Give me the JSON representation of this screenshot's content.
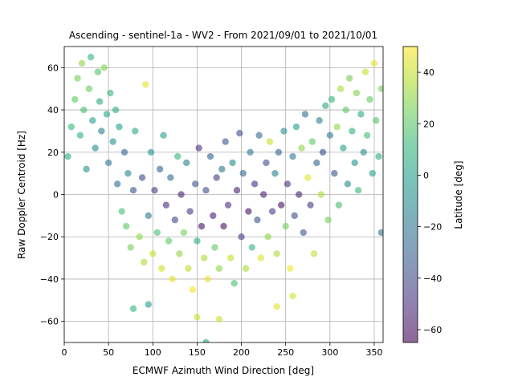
{
  "chart_data": {
    "type": "scatter",
    "title": "Ascending - sentinel-1a - WV2 - From 2021/09/01 to 2021/10/01",
    "xlabel": "ECMWF Azimuth Wind Direction [deg]",
    "ylabel": "Raw Doppler Centroid [Hz]",
    "xlim": [
      0,
      360
    ],
    "ylim": [
      -70,
      70
    ],
    "xticks": [
      "0",
      "50",
      "100",
      "150",
      "200",
      "250",
      "300",
      "350"
    ],
    "yticks": [
      "−60",
      "−40",
      "−20",
      "0",
      "20",
      "40",
      "60"
    ],
    "grid": true,
    "marker_alpha": 0.6,
    "colorbar": {
      "label": "Latitude [deg]",
      "range": [
        -65,
        50
      ],
      "ticks": [
        "−60",
        "−40",
        "−20",
        "0",
        "20",
        "40"
      ],
      "colormap": "viridis",
      "colors": [
        "#440154",
        "#482878",
        "#3e4a89",
        "#31688e",
        "#26828e",
        "#1f9e89",
        "#35b779",
        "#6ece58",
        "#b5de2b",
        "#fde725"
      ]
    },
    "points": [
      {
        "x": 4,
        "y": 18,
        "lat": 5
      },
      {
        "x": 8,
        "y": 32,
        "lat": 12
      },
      {
        "x": 12,
        "y": 45,
        "lat": 20
      },
      {
        "x": 15,
        "y": 55,
        "lat": 25
      },
      {
        "x": 18,
        "y": 28,
        "lat": 8
      },
      {
        "x": 20,
        "y": 62,
        "lat": 30
      },
      {
        "x": 22,
        "y": 40,
        "lat": 15
      },
      {
        "x": 25,
        "y": 12,
        "lat": -5
      },
      {
        "x": 28,
        "y": 50,
        "lat": 22
      },
      {
        "x": 30,
        "y": 65,
        "lat": 10
      },
      {
        "x": 32,
        "y": 35,
        "lat": 0
      },
      {
        "x": 35,
        "y": 22,
        "lat": -10
      },
      {
        "x": 38,
        "y": 58,
        "lat": 18
      },
      {
        "x": 40,
        "y": 44,
        "lat": 5
      },
      {
        "x": 42,
        "y": 30,
        "lat": -15
      },
      {
        "x": 45,
        "y": 60,
        "lat": 28
      },
      {
        "x": 48,
        "y": 38,
        "lat": 2
      },
      {
        "x": 50,
        "y": 15,
        "lat": -20
      },
      {
        "x": 52,
        "y": 48,
        "lat": 12
      },
      {
        "x": 55,
        "y": 25,
        "lat": -8
      },
      {
        "x": 58,
        "y": 40,
        "lat": 6
      },
      {
        "x": 60,
        "y": 5,
        "lat": -25
      },
      {
        "x": 62,
        "y": 32,
        "lat": 0
      },
      {
        "x": 65,
        "y": -8,
        "lat": 15
      },
      {
        "x": 68,
        "y": 20,
        "lat": -30
      },
      {
        "x": 70,
        "y": -15,
        "lat": 20
      },
      {
        "x": 72,
        "y": 10,
        "lat": -12
      },
      {
        "x": 75,
        "y": -25,
        "lat": 25
      },
      {
        "x": 78,
        "y": 2,
        "lat": -35
      },
      {
        "x": 78,
        "y": -54,
        "lat": 10
      },
      {
        "x": 80,
        "y": 30,
        "lat": 5
      },
      {
        "x": 85,
        "y": -20,
        "lat": 30
      },
      {
        "x": 88,
        "y": 8,
        "lat": -40
      },
      {
        "x": 90,
        "y": -32,
        "lat": 35
      },
      {
        "x": 92,
        "y": 52,
        "lat": 45
      },
      {
        "x": 95,
        "y": -10,
        "lat": -20
      },
      {
        "x": 95,
        "y": -52,
        "lat": 0
      },
      {
        "x": 98,
        "y": 20,
        "lat": -5
      },
      {
        "x": 100,
        "y": -28,
        "lat": 40
      },
      {
        "x": 102,
        "y": 2,
        "lat": -45
      },
      {
        "x": 105,
        "y": -18,
        "lat": 15
      },
      {
        "x": 108,
        "y": 12,
        "lat": -30
      },
      {
        "x": 110,
        "y": -35,
        "lat": 42
      },
      {
        "x": 112,
        "y": 28,
        "lat": 0
      },
      {
        "x": 115,
        "y": -5,
        "lat": -50
      },
      {
        "x": 118,
        "y": -22,
        "lat": 20
      },
      {
        "x": 120,
        "y": 8,
        "lat": -25
      },
      {
        "x": 122,
        "y": -40,
        "lat": 45
      },
      {
        "x": 125,
        "y": -12,
        "lat": -40
      },
      {
        "x": 128,
        "y": 18,
        "lat": 10
      },
      {
        "x": 130,
        "y": -28,
        "lat": 30
      },
      {
        "x": 132,
        "y": 0,
        "lat": -55
      },
      {
        "x": 135,
        "y": -18,
        "lat": 25
      },
      {
        "x": 138,
        "y": 15,
        "lat": -15
      },
      {
        "x": 140,
        "y": -35,
        "lat": 38
      },
      {
        "x": 142,
        "y": -8,
        "lat": -45
      },
      {
        "x": 145,
        "y": -45,
        "lat": 48
      },
      {
        "x": 148,
        "y": 5,
        "lat": -35
      },
      {
        "x": 150,
        "y": -22,
        "lat": 5
      },
      {
        "x": 150,
        "y": -58,
        "lat": 40
      },
      {
        "x": 152,
        "y": 22,
        "lat": -50
      },
      {
        "x": 155,
        "y": -15,
        "lat": -60
      },
      {
        "x": 158,
        "y": -30,
        "lat": 35
      },
      {
        "x": 160,
        "y": -70,
        "lat": 0
      },
      {
        "x": 160,
        "y": 2,
        "lat": -40
      },
      {
        "x": 162,
        "y": -40,
        "lat": 45
      },
      {
        "x": 165,
        "y": 18,
        "lat": -30
      },
      {
        "x": 168,
        "y": -10,
        "lat": -55
      },
      {
        "x": 170,
        "y": -25,
        "lat": 20
      },
      {
        "x": 172,
        "y": 8,
        "lat": -45
      },
      {
        "x": 175,
        "y": -59,
        "lat": 42
      },
      {
        "x": 175,
        "y": -35,
        "lat": 30
      },
      {
        "x": 178,
        "y": 12,
        "lat": -20
      },
      {
        "x": 180,
        "y": -15,
        "lat": -60
      },
      {
        "x": 182,
        "y": 25,
        "lat": -35
      },
      {
        "x": 185,
        "y": -5,
        "lat": -50
      },
      {
        "x": 188,
        "y": -30,
        "lat": 40
      },
      {
        "x": 190,
        "y": 15,
        "lat": -10
      },
      {
        "x": 192,
        "y": -42,
        "lat": 15
      },
      {
        "x": 195,
        "y": 2,
        "lat": -55
      },
      {
        "x": 198,
        "y": 29,
        "lat": -40
      },
      {
        "x": 200,
        "y": -20,
        "lat": -45
      },
      {
        "x": 202,
        "y": 10,
        "lat": -30
      },
      {
        "x": 205,
        "y": -35,
        "lat": 35
      },
      {
        "x": 208,
        "y": -8,
        "lat": -60
      },
      {
        "x": 210,
        "y": 20,
        "lat": -20
      },
      {
        "x": 212,
        "y": -25,
        "lat": 10
      },
      {
        "x": 215,
        "y": 5,
        "lat": -50
      },
      {
        "x": 218,
        "y": -12,
        "lat": -35
      },
      {
        "x": 220,
        "y": 28,
        "lat": -25
      },
      {
        "x": 222,
        "y": -30,
        "lat": 45
      },
      {
        "x": 225,
        "y": 0,
        "lat": -55
      },
      {
        "x": 228,
        "y": 15,
        "lat": -40
      },
      {
        "x": 230,
        "y": -20,
        "lat": 30
      },
      {
        "x": 232,
        "y": 25,
        "lat": 40
      },
      {
        "x": 235,
        "y": -8,
        "lat": -45
      },
      {
        "x": 238,
        "y": 10,
        "lat": -15
      },
      {
        "x": 240,
        "y": -53,
        "lat": 45
      },
      {
        "x": 240,
        "y": -28,
        "lat": 35
      },
      {
        "x": 242,
        "y": 20,
        "lat": -30
      },
      {
        "x": 245,
        "y": -5,
        "lat": -60
      },
      {
        "x": 248,
        "y": 30,
        "lat": -10
      },
      {
        "x": 250,
        "y": -15,
        "lat": 25
      },
      {
        "x": 252,
        "y": 5,
        "lat": -50
      },
      {
        "x": 255,
        "y": -35,
        "lat": 48
      },
      {
        "x": 258,
        "y": 18,
        "lat": -20
      },
      {
        "x": 258,
        "y": -48,
        "lat": 42
      },
      {
        "x": 260,
        "y": -10,
        "lat": -40
      },
      {
        "x": 262,
        "y": 32,
        "lat": 0
      },
      {
        "x": 265,
        "y": 0,
        "lat": -55
      },
      {
        "x": 268,
        "y": 22,
        "lat": 30
      },
      {
        "x": 270,
        "y": -18,
        "lat": -35
      },
      {
        "x": 272,
        "y": 38,
        "lat": -25
      },
      {
        "x": 275,
        "y": 8,
        "lat": 45
      },
      {
        "x": 278,
        "y": -5,
        "lat": -45
      },
      {
        "x": 280,
        "y": 25,
        "lat": 20
      },
      {
        "x": 282,
        "y": -28,
        "lat": 40
      },
      {
        "x": 285,
        "y": 15,
        "lat": -30
      },
      {
        "x": 288,
        "y": 35,
        "lat": -15
      },
      {
        "x": 290,
        "y": 0,
        "lat": 35
      },
      {
        "x": 292,
        "y": 20,
        "lat": -40
      },
      {
        "x": 295,
        "y": 42,
        "lat": 5
      },
      {
        "x": 298,
        "y": -12,
        "lat": 25
      },
      {
        "x": 300,
        "y": 28,
        "lat": -20
      },
      {
        "x": 302,
        "y": 45,
        "lat": 10
      },
      {
        "x": 305,
        "y": 10,
        "lat": -35
      },
      {
        "x": 308,
        "y": 32,
        "lat": 30
      },
      {
        "x": 310,
        "y": -5,
        "lat": 15
      },
      {
        "x": 312,
        "y": 50,
        "lat": 35
      },
      {
        "x": 315,
        "y": 22,
        "lat": 0
      },
      {
        "x": 318,
        "y": 40,
        "lat": 20
      },
      {
        "x": 320,
        "y": 5,
        "lat": -10
      },
      {
        "x": 322,
        "y": 55,
        "lat": 25
      },
      {
        "x": 325,
        "y": 30,
        "lat": 8
      },
      {
        "x": 328,
        "y": 15,
        "lat": -5
      },
      {
        "x": 330,
        "y": 48,
        "lat": 28
      },
      {
        "x": 332,
        "y": 2,
        "lat": 12
      },
      {
        "x": 335,
        "y": 38,
        "lat": 5
      },
      {
        "x": 338,
        "y": 20,
        "lat": -8
      },
      {
        "x": 340,
        "y": 58,
        "lat": 40
      },
      {
        "x": 342,
        "y": 28,
        "lat": 15
      },
      {
        "x": 345,
        "y": 45,
        "lat": 22
      },
      {
        "x": 348,
        "y": 10,
        "lat": 0
      },
      {
        "x": 350,
        "y": 62,
        "lat": 45
      },
      {
        "x": 352,
        "y": 35,
        "lat": 18
      },
      {
        "x": 355,
        "y": 18,
        "lat": 5
      },
      {
        "x": 358,
        "y": 50,
        "lat": 25
      },
      {
        "x": 358,
        "y": -18,
        "lat": -20
      }
    ]
  }
}
